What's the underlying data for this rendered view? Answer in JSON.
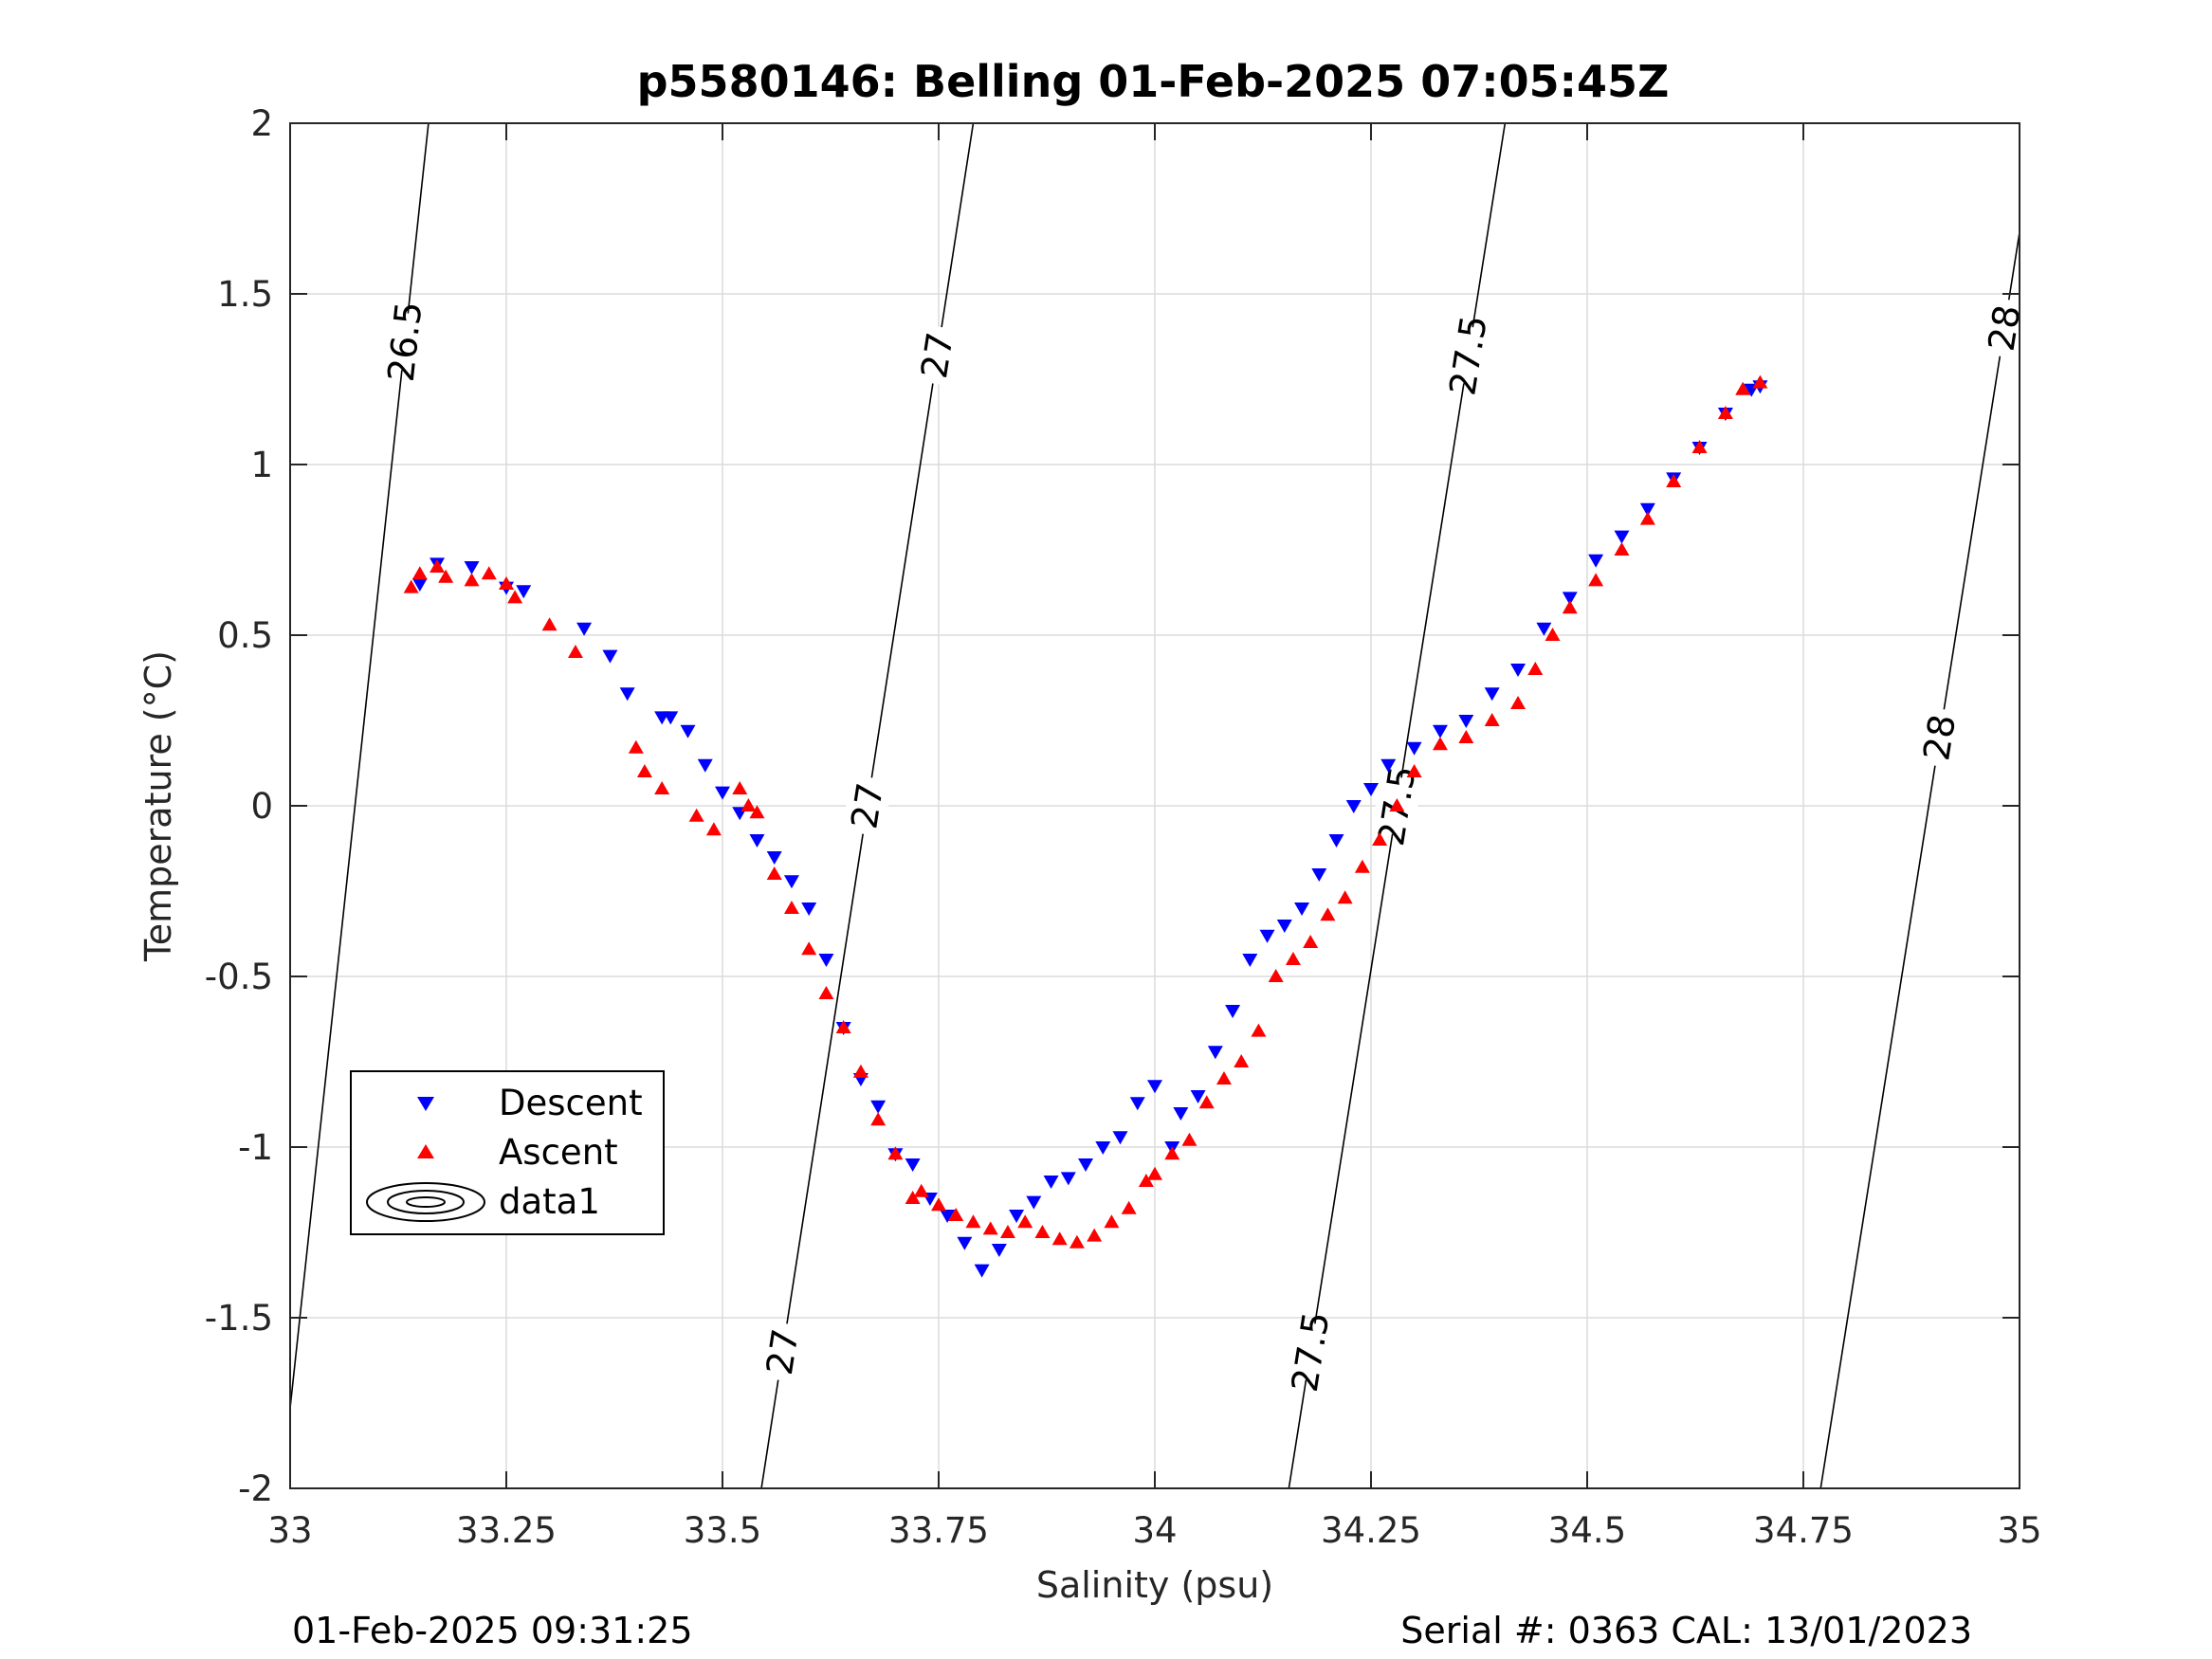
{
  "chart_data": {
    "type": "scatter",
    "title": "p5580146: Belling 01-Feb-2025 07:05:45Z",
    "xlabel": "Salinity (psu)",
    "ylabel": "Temperature (°C)",
    "xlim": [
      33,
      35
    ],
    "ylim": [
      -2,
      2
    ],
    "x_ticks": [
      33,
      33.25,
      33.5,
      33.75,
      34,
      34.25,
      34.5,
      34.75,
      35
    ],
    "x_tick_labels": [
      "33",
      "33.25",
      "33.5",
      "33.75",
      "34",
      "34.25",
      "34.5",
      "34.75",
      "35"
    ],
    "y_ticks": [
      -2,
      -1.5,
      -1,
      -0.5,
      0,
      0.5,
      1,
      1.5,
      2
    ],
    "y_tick_labels": [
      "-2",
      "-1.5",
      "-1",
      "-0.5",
      "0",
      "0.5",
      "1",
      "1.5",
      "2"
    ],
    "grid": true,
    "legend_position": "lower-left",
    "legend": [
      "Descent",
      "Ascent",
      "data1"
    ],
    "series": [
      {
        "name": "Descent",
        "marker": "triangle-down",
        "color": "#0000ff",
        "x": [
          33.15,
          33.17,
          33.21,
          33.25,
          33.27,
          33.34,
          33.37,
          33.39,
          33.43,
          33.44,
          33.46,
          33.48,
          33.5,
          33.52,
          33.54,
          33.56,
          33.58,
          33.6,
          33.62,
          33.64,
          33.66,
          33.68,
          33.7,
          33.72,
          33.74,
          33.76,
          33.78,
          33.8,
          33.82,
          33.84,
          33.86,
          33.88,
          33.9,
          33.92,
          33.94,
          33.96,
          33.98,
          34.0,
          34.02,
          34.03,
          34.05,
          34.07,
          34.09,
          34.11,
          34.13,
          34.15,
          34.17,
          34.19,
          34.21,
          34.23,
          34.25,
          34.27,
          34.3,
          34.33,
          34.36,
          34.39,
          34.42,
          34.45,
          34.48,
          34.51,
          34.54,
          34.57,
          34.6,
          34.63,
          34.66,
          34.69,
          34.7
        ],
        "y": [
          0.65,
          0.71,
          0.7,
          0.64,
          0.63,
          0.52,
          0.44,
          0.33,
          0.26,
          0.26,
          0.22,
          0.12,
          0.04,
          -0.02,
          -0.1,
          -0.15,
          -0.22,
          -0.3,
          -0.45,
          -0.65,
          -0.8,
          -0.88,
          -1.02,
          -1.05,
          -1.15,
          -1.2,
          -1.28,
          -1.36,
          -1.3,
          -1.2,
          -1.16,
          -1.1,
          -1.09,
          -1.05,
          -1.0,
          -0.97,
          -0.87,
          -0.82,
          -1.0,
          -0.9,
          -0.85,
          -0.72,
          -0.6,
          -0.45,
          -0.38,
          -0.35,
          -0.3,
          -0.2,
          -0.1,
          0.0,
          0.05,
          0.12,
          0.17,
          0.22,
          0.25,
          0.33,
          0.4,
          0.52,
          0.61,
          0.72,
          0.79,
          0.87,
          0.96,
          1.05,
          1.15,
          1.22,
          1.23
        ]
      },
      {
        "name": "Ascent",
        "marker": "triangle-up",
        "color": "#ff0000",
        "x": [
          33.14,
          33.15,
          33.17,
          33.18,
          33.21,
          33.23,
          33.25,
          33.26,
          33.3,
          33.33,
          33.4,
          33.41,
          33.43,
          33.47,
          33.49,
          33.52,
          33.53,
          33.54,
          33.56,
          33.58,
          33.6,
          33.62,
          33.64,
          33.66,
          33.68,
          33.7,
          33.72,
          33.73,
          33.75,
          33.77,
          33.79,
          33.81,
          33.83,
          33.85,
          33.87,
          33.89,
          33.91,
          33.93,
          33.95,
          33.97,
          33.99,
          34.0,
          34.02,
          34.04,
          34.06,
          34.08,
          34.1,
          34.12,
          34.14,
          34.16,
          34.18,
          34.2,
          34.22,
          34.24,
          34.26,
          34.28,
          34.3,
          34.33,
          34.36,
          34.39,
          34.42,
          34.44,
          34.46,
          34.48,
          34.51,
          34.54,
          34.57,
          34.6,
          34.63,
          34.66,
          34.68,
          34.7
        ],
        "y": [
          0.64,
          0.68,
          0.7,
          0.67,
          0.66,
          0.68,
          0.65,
          0.61,
          0.53,
          0.45,
          0.17,
          0.1,
          0.05,
          -0.03,
          -0.07,
          0.05,
          0.0,
          -0.02,
          -0.2,
          -0.3,
          -0.42,
          -0.55,
          -0.65,
          -0.78,
          -0.92,
          -1.02,
          -1.15,
          -1.13,
          -1.17,
          -1.2,
          -1.22,
          -1.24,
          -1.25,
          -1.22,
          -1.25,
          -1.27,
          -1.28,
          -1.26,
          -1.22,
          -1.18,
          -1.1,
          -1.08,
          -1.02,
          -0.98,
          -0.87,
          -0.8,
          -0.75,
          -0.66,
          -0.5,
          -0.45,
          -0.4,
          -0.32,
          -0.27,
          -0.18,
          -0.1,
          0.0,
          0.1,
          0.18,
          0.2,
          0.25,
          0.3,
          0.4,
          0.5,
          0.58,
          0.66,
          0.75,
          0.84,
          0.95,
          1.05,
          1.15,
          1.22,
          1.24
        ]
      }
    ],
    "isopycnals": [
      {
        "label": "26.5",
        "x_at_bottom": 32.99,
        "x_at_top": 33.16
      },
      {
        "label": "27",
        "x_at_bottom": 33.545,
        "x_at_top": 33.79
      },
      {
        "label": "27.5",
        "x_at_bottom": 34.155,
        "x_at_top": 34.405
      },
      {
        "label": "28",
        "x_at_bottom": 34.77,
        "x_at_top": 35.02
      }
    ]
  },
  "footer": {
    "left": "01-Feb-2025 09:31:25",
    "right": "Serial #: 0363  CAL: 13/01/2023"
  }
}
